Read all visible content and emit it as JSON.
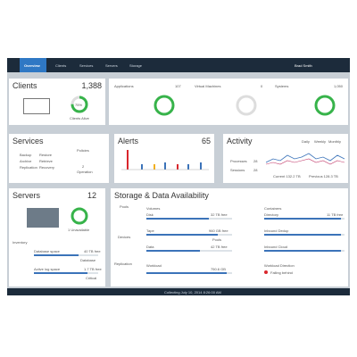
{
  "nav": {
    "tabs": [
      "Overview",
      "Clients",
      "Services",
      "Servers",
      "Storage"
    ],
    "user": "Brad Smith"
  },
  "clients": {
    "title": "Clients",
    "count": "1,388",
    "percent": "75%",
    "caption": "Clients Alive"
  },
  "applications": {
    "title": "Applications",
    "count": "107"
  },
  "virtual_machines": {
    "title": "Virtual Machines",
    "count": "0"
  },
  "systems": {
    "title": "Systems",
    "count": "1,050"
  },
  "services": {
    "title": "Services",
    "sources": [
      "Backup",
      "Archive",
      "Replication"
    ],
    "targets": [
      "Restore",
      "Retrieve",
      "Recovery"
    ],
    "policies": "Policies",
    "policy_count": "2",
    "policy_caption": "Operation"
  },
  "alerts": {
    "title": "Alerts",
    "count": "65"
  },
  "activity": {
    "title": "Activity",
    "tabs": [
      "Daily",
      "Weekly",
      "Monthly"
    ],
    "rows": [
      {
        "label": "Processes",
        "value": "28"
      },
      {
        "label": "Sessions",
        "value": "28"
      }
    ],
    "current": "Current 132.2 TB",
    "previous": "Previous 128.3 TB"
  },
  "servers": {
    "title": "Servers",
    "count": "12",
    "status": "1 Unavailable",
    "inventory": "Inventory",
    "rows": [
      {
        "label": "Database space",
        "value": "40 TB free",
        "status": "Database"
      },
      {
        "label": "Active log space",
        "value": "1.7 TB free",
        "status": "Critical"
      }
    ]
  },
  "storage": {
    "title": "Storage & Data Availability",
    "sections": [
      "Pools",
      "Devices",
      "Replication"
    ],
    "volumes": "Volumes",
    "volume_rows": [
      {
        "label": "Disk",
        "value": "32 TB free"
      },
      {
        "label": "Tape",
        "value": "960 GB free"
      },
      {
        "label": "Data",
        "value": "42 TB free"
      }
    ],
    "pools_note": "Pools",
    "containers": "Containers",
    "container_rows": [
      {
        "label": "Directory",
        "value": "11 TB free"
      },
      {
        "label": "Inbound Dedup",
        "value": ""
      },
      {
        "label": "Inbound Cloud",
        "value": ""
      }
    ],
    "workload": "Workload",
    "workload_value": "750.6 GB",
    "workload_direction": "Workload Direction",
    "direction_status": "Falling behind"
  },
  "footer": "Collecting July 10, 2014 8:26:00 AM"
}
